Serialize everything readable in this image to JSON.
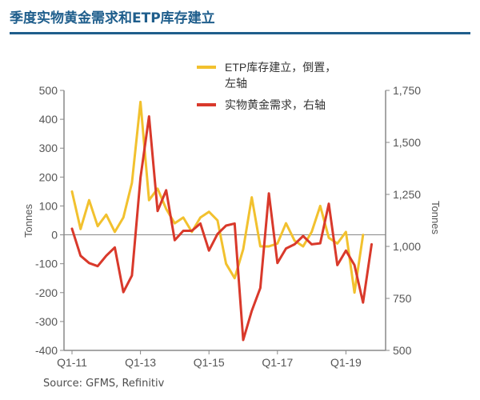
{
  "page": {
    "title": "季度实物黄金需求和ETP库存建立",
    "source": "Source: GFMS, Refinitiv"
  },
  "colors": {
    "title": "#1f5e8c",
    "etp": "#f2c12e",
    "demand": "#d9392b",
    "axis": "#888888"
  },
  "chart_data": {
    "type": "line",
    "left_axis": {
      "label": "Tonnes",
      "ylim": [
        -400,
        500
      ],
      "ticks": [
        "500",
        "400",
        "300",
        "200",
        "100",
        "0",
        "-100",
        "-200",
        "-300",
        "-400"
      ]
    },
    "right_axis": {
      "label": "Tonnes",
      "ylim": [
        500,
        1750
      ],
      "ticks": [
        "1,750",
        "1,500",
        "1,250",
        "1,000",
        "750",
        "500"
      ]
    },
    "x_tick_labels": [
      "Q1-11",
      "Q1-13",
      "Q1-15",
      "Q1-17",
      "Q1-19"
    ],
    "x_tick_index": [
      0,
      8,
      16,
      24,
      32
    ],
    "n_quarters": 37,
    "legend": {
      "position": "top-right"
    },
    "series": [
      {
        "name": "ETP库存建立，倒置，左轴",
        "axis": "left",
        "color": "#f2c12e",
        "values": [
          150,
          20,
          120,
          30,
          70,
          10,
          60,
          180,
          460,
          120,
          160,
          90,
          40,
          60,
          10,
          60,
          80,
          50,
          -100,
          -150,
          -50,
          130,
          -40,
          -40,
          -30,
          40,
          -20,
          -40,
          10,
          100,
          -10,
          -30,
          10,
          -200,
          0
        ]
      },
      {
        "name": "实物黄金需求，右轴",
        "axis": "right",
        "color": "#d9392b",
        "values": [
          1085,
          955,
          920,
          905,
          955,
          995,
          780,
          860,
          1330,
          1625,
          1170,
          1270,
          1030,
          1075,
          1075,
          1110,
          980,
          1060,
          1100,
          1110,
          550,
          690,
          800,
          1255,
          920,
          990,
          1010,
          1050,
          1010,
          1015,
          1205,
          910,
          980,
          910,
          730,
          1010
        ]
      }
    ]
  }
}
